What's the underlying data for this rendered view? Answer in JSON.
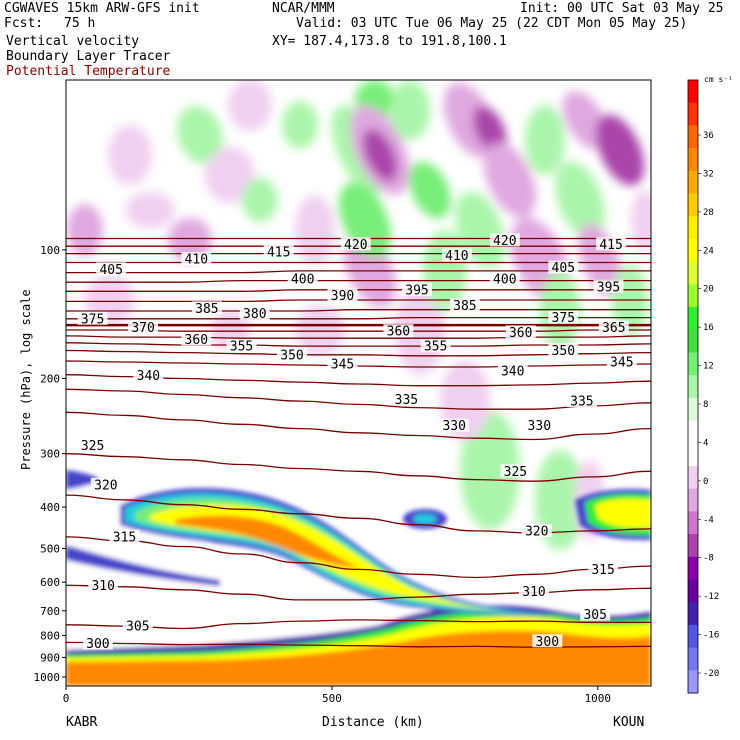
{
  "header": {
    "model": "CGWAVES 15km ARW-GFS init",
    "fcst_label": "Fcst:",
    "fcst_value": "75 h",
    "center": "NCAR/MMM",
    "init": "Init: 00 UTC Sat 03 May 25",
    "valid": "Valid: 03 UTC Tue 06 May 25 (22 CDT Mon 05 May 25)",
    "xy": "XY= 187.4,173.8 to 191.8,100.1",
    "fields": [
      {
        "label": "Vertical velocity",
        "color": "#000000"
      },
      {
        "label": "Boundary Layer Tracer",
        "color": "#000000"
      },
      {
        "label": "Potential Temperature",
        "color": "#8b0000"
      }
    ]
  },
  "chart_data": {
    "type": "heatmap",
    "xlabel": "Distance (km)",
    "ylabel": "Pressure (hPa), log scale",
    "xlim": [
      0,
      1100
    ],
    "ylim": [
      1050,
      40
    ],
    "x_ticks": [
      0,
      500,
      1000
    ],
    "y_ticks": [
      100,
      200,
      300,
      400,
      500,
      600,
      700,
      800,
      900,
      1000
    ],
    "left_station": "KABR",
    "right_station": "KOUN",
    "colorbar": {
      "unit": "cm s⁻¹",
      "ticks": [
        36,
        32,
        28,
        24,
        20,
        16,
        12,
        8,
        4,
        0,
        -4,
        -8,
        -12,
        -16,
        -20
      ],
      "colors": [
        "#ff0000",
        "#ff3300",
        "#ff6600",
        "#ff8800",
        "#ffaa00",
        "#ffcc00",
        "#ffee00",
        "#ffff00",
        "#ddff33",
        "#99ff33",
        "#33ee33",
        "#44dd44",
        "#77ee77",
        "#aaf5aa",
        "#ddfadd",
        "#ffffff",
        "#ffffff",
        "#f0d0f0",
        "#e0a8e0",
        "#cc77cc",
        "#aa44aa",
        "#8800aa",
        "#660099",
        "#4422aa",
        "#5555dd",
        "#7777ee",
        "#9999ff"
      ]
    },
    "theta_contours": [
      {
        "theta": 300,
        "p": [
          830,
          835,
          840,
          838,
          842,
          845,
          850,
          848,
          852,
          850,
          848
        ]
      },
      {
        "theta": 305,
        "p": [
          755,
          760,
          770,
          750,
          740,
          735,
          738,
          742,
          740,
          745,
          745
        ]
      },
      {
        "theta": 310,
        "p": [
          610,
          615,
          625,
          640,
          660,
          660,
          650,
          640,
          635,
          625,
          620
        ]
      },
      {
        "theta": 315,
        "p": [
          470,
          480,
          495,
          515,
          540,
          560,
          575,
          585,
          575,
          560,
          550
        ]
      },
      {
        "theta": 320,
        "p": [
          375,
          385,
          395,
          405,
          415,
          425,
          440,
          455,
          460,
          455,
          450
        ]
      },
      {
        "theta": 325,
        "p": [
          300,
          305,
          310,
          318,
          325,
          330,
          338,
          345,
          348,
          340,
          330
        ]
      },
      {
        "theta": 330,
        "p": [
          240,
          244,
          250,
          256,
          262,
          268,
          272,
          276,
          278,
          270,
          262
        ]
      },
      {
        "theta": 335,
        "p": [
          212,
          214,
          218,
          222,
          226,
          230,
          234,
          236,
          236,
          232,
          228
        ]
      },
      {
        "theta": 340,
        "p": [
          196,
          198,
          200,
          202,
          204,
          206,
          208,
          208,
          207,
          205,
          203
        ]
      },
      {
        "theta": 345,
        "p": [
          182,
          183,
          184,
          185,
          186,
          187,
          188,
          188,
          187,
          186,
          185
        ]
      },
      {
        "theta": 350,
        "p": [
          172,
          173,
          174,
          175,
          176,
          176,
          177,
          177,
          176,
          175,
          174
        ]
      },
      {
        "theta": 355,
        "p": [
          165,
          166,
          167,
          167,
          168,
          168,
          168,
          168,
          167,
          167,
          166
        ]
      },
      {
        "theta": 360,
        "p": [
          159,
          160,
          160,
          161,
          161,
          161,
          161,
          161,
          160,
          160,
          159
        ]
      },
      {
        "theta": 365,
        "p": [
          154,
          154,
          155,
          155,
          155,
          155,
          155,
          155,
          155,
          154,
          154
        ]
      },
      {
        "theta": 370,
        "p": [
          150,
          150,
          150,
          150,
          150,
          150,
          150,
          150,
          150,
          150,
          150
        ]
      },
      {
        "theta": 375,
        "p": [
          145,
          145,
          145,
          145,
          145,
          145,
          144,
          144,
          144,
          144,
          144
        ]
      },
      {
        "theta": 380,
        "p": [
          139,
          139,
          139,
          139,
          139,
          138,
          138,
          138,
          138,
          138,
          138
        ]
      },
      {
        "theta": 385,
        "p": [
          132,
          132,
          132,
          132,
          131,
          131,
          131,
          131,
          131,
          131,
          131
        ]
      },
      {
        "theta": 390,
        "p": [
          125,
          125,
          125,
          125,
          124,
          124,
          124,
          124,
          124,
          124,
          124
        ]
      },
      {
        "theta": 395,
        "p": [
          119,
          119,
          119,
          118,
          118,
          118,
          118,
          118,
          118,
          118,
          118
        ]
      },
      {
        "theta": 400,
        "p": [
          113,
          113,
          113,
          113,
          112,
          112,
          112,
          112,
          112,
          112,
          112
        ]
      },
      {
        "theta": 405,
        "p": [
          107,
          107,
          107,
          107,
          107,
          107,
          107,
          107,
          107,
          107,
          107
        ]
      },
      {
        "theta": 410,
        "p": [
          102,
          102,
          102,
          102,
          102,
          102,
          102,
          102,
          102,
          102,
          102
        ]
      },
      {
        "theta": 415,
        "p": [
          98,
          98,
          98,
          98,
          98,
          98,
          98,
          98,
          98,
          98,
          98
        ]
      },
      {
        "theta": 420,
        "p": [
          94,
          94,
          94,
          94,
          94,
          94,
          94,
          94,
          94,
          94,
          94
        ]
      }
    ],
    "theta_labels": [
      {
        "text": "300",
        "x": 60,
        "p": 835
      },
      {
        "text": "300",
        "x": 905,
        "p": 825
      },
      {
        "text": "305",
        "x": 135,
        "p": 760
      },
      {
        "text": "305",
        "x": 995,
        "p": 715
      },
      {
        "text": "310",
        "x": 70,
        "p": 610
      },
      {
        "text": "310",
        "x": 880,
        "p": 630
      },
      {
        "text": "315",
        "x": 110,
        "p": 470
      },
      {
        "text": "315",
        "x": 1010,
        "p": 560
      },
      {
        "text": "320",
        "x": 75,
        "p": 355
      },
      {
        "text": "320",
        "x": 885,
        "p": 455
      },
      {
        "text": "325",
        "x": 50,
        "p": 287
      },
      {
        "text": "325",
        "x": 845,
        "p": 330
      },
      {
        "text": "330",
        "x": 730,
        "p": 258
      },
      {
        "text": "330",
        "x": 890,
        "p": 258
      },
      {
        "text": "335",
        "x": 640,
        "p": 224
      },
      {
        "text": "335",
        "x": 970,
        "p": 226
      },
      {
        "text": "340",
        "x": 155,
        "p": 197
      },
      {
        "text": "340",
        "x": 840,
        "p": 192
      },
      {
        "text": "345",
        "x": 520,
        "p": 185
      },
      {
        "text": "345",
        "x": 1045,
        "p": 183
      },
      {
        "text": "350",
        "x": 425,
        "p": 176
      },
      {
        "text": "350",
        "x": 935,
        "p": 172
      },
      {
        "text": "355",
        "x": 330,
        "p": 168
      },
      {
        "text": "355",
        "x": 695,
        "p": 168
      },
      {
        "text": "360",
        "x": 245,
        "p": 162
      },
      {
        "text": "360",
        "x": 625,
        "p": 155
      },
      {
        "text": "360",
        "x": 855,
        "p": 156
      },
      {
        "text": "365",
        "x": 1030,
        "p": 152
      },
      {
        "text": "370",
        "x": 145,
        "p": 152
      },
      {
        "text": "375",
        "x": 50,
        "p": 145
      },
      {
        "text": "375",
        "x": 935,
        "p": 144
      },
      {
        "text": "380",
        "x": 355,
        "p": 141
      },
      {
        "text": "385",
        "x": 265,
        "p": 137
      },
      {
        "text": "385",
        "x": 750,
        "p": 135
      },
      {
        "text": "390",
        "x": 520,
        "p": 128
      },
      {
        "text": "395",
        "x": 660,
        "p": 124
      },
      {
        "text": "395",
        "x": 1020,
        "p": 122
      },
      {
        "text": "400",
        "x": 445,
        "p": 117
      },
      {
        "text": "400",
        "x": 825,
        "p": 117
      },
      {
        "text": "405",
        "x": 85,
        "p": 111
      },
      {
        "text": "405",
        "x": 935,
        "p": 110
      },
      {
        "text": "410",
        "x": 245,
        "p": 105
      },
      {
        "text": "410",
        "x": 735,
        "p": 103
      },
      {
        "text": "415",
        "x": 400,
        "p": 101
      },
      {
        "text": "415",
        "x": 1025,
        "p": 97
      },
      {
        "text": "420",
        "x": 545,
        "p": 97
      },
      {
        "text": "420",
        "x": 825,
        "p": 95
      }
    ]
  }
}
